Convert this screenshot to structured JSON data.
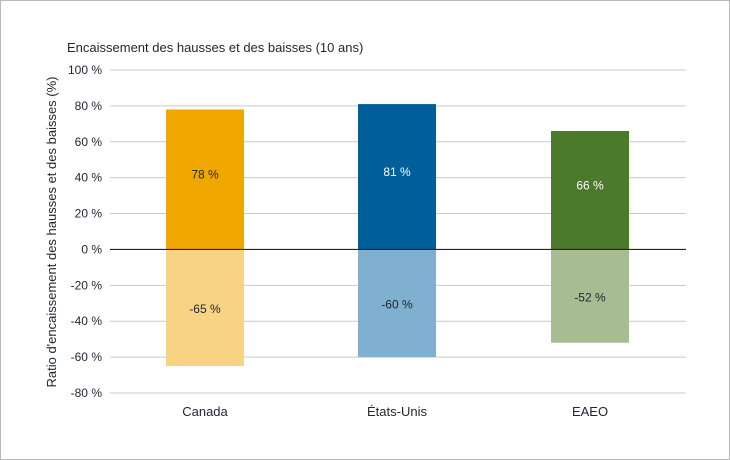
{
  "chart_data": {
    "type": "bar",
    "title": "Encaissement des hausses et des baisses (10 ans)",
    "ylabel": "Ratio d'encaissement des hausses et des baisses (%)",
    "xlabel": "",
    "ylim": [
      -80,
      100
    ],
    "grid": true,
    "yticks": [
      100,
      80,
      60,
      40,
      20,
      0,
      -20,
      -40,
      -60,
      -80
    ],
    "ytick_labels": [
      "100 %",
      "80 %",
      "60 %",
      "40 %",
      "20 %",
      "0 %",
      "-20 %",
      "-40 %",
      "-60 %",
      "-80 %"
    ],
    "categories": [
      "Canada",
      "États-Unis",
      "EAEO"
    ],
    "series": [
      {
        "values": [
          78,
          81,
          66
        ],
        "labels": [
          "78 %",
          "81 %",
          "66 %"
        ],
        "colors": [
          "#f0a800",
          "#005f99",
          "#4a7a2a"
        ],
        "label_colors": [
          "#1f2430",
          "#ffffff",
          "#ffffff"
        ]
      },
      {
        "values": [
          -65,
          -60,
          -52
        ],
        "labels": [
          "-65 %",
          "-60 %",
          "-52 %"
        ],
        "colors": [
          "#f7d483",
          "#80b0d0",
          "#a7bd91"
        ],
        "label_colors": [
          "#1f2430",
          "#1f2430",
          "#1f2430"
        ]
      }
    ]
  }
}
